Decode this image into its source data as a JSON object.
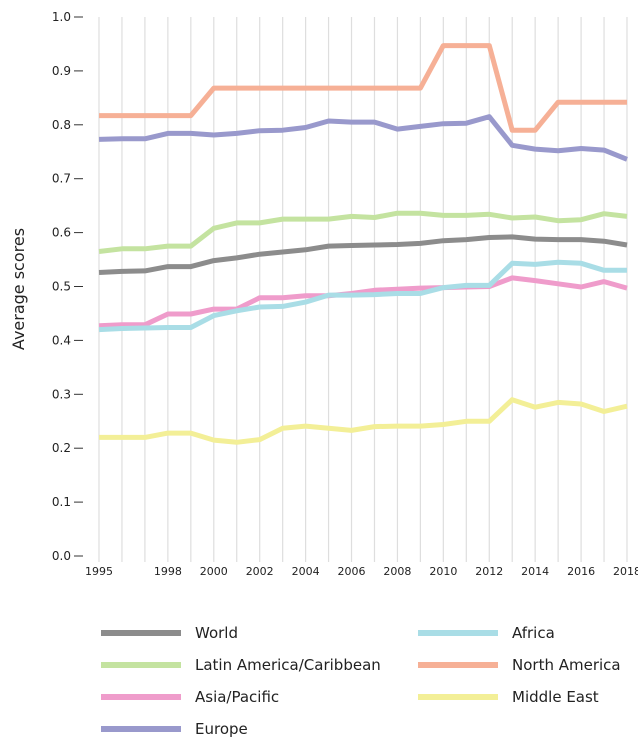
{
  "chart_data": {
    "type": "line",
    "ylabel": "Average scores",
    "xlabel": "",
    "title": "",
    "ylim": [
      0,
      1.0
    ],
    "y_ticks": [
      "0.0",
      "0.1",
      "0.2",
      "0.3",
      "0.4",
      "0.5",
      "0.6",
      "0.7",
      "0.8",
      "0.9",
      "1.0"
    ],
    "x_tick_labels": [
      "1995",
      "1998",
      "2000",
      "2002",
      "2004",
      "2006",
      "2008",
      "2010",
      "2012",
      "2014",
      "2016",
      "2018"
    ],
    "x": [
      1995,
      1996,
      1997,
      1998,
      1999,
      2000,
      2001,
      2002,
      2003,
      2004,
      2005,
      2006,
      2007,
      2008,
      2009,
      2010,
      2011,
      2012,
      2013,
      2014,
      2015,
      2016,
      2017,
      2018
    ],
    "grid": "vertical",
    "legend_position": "bottom",
    "series": [
      {
        "name": "World",
        "color": "#8c8c8c",
        "values": [
          0.526,
          0.528,
          0.529,
          0.537,
          0.537,
          0.548,
          0.553,
          0.56,
          0.564,
          0.568,
          0.575,
          0.576,
          0.577,
          0.578,
          0.58,
          0.585,
          0.587,
          0.591,
          0.592,
          0.588,
          0.587,
          0.587,
          0.584,
          0.577
        ]
      },
      {
        "name": "Latin America/Caribbean",
        "color": "#c4e3a0",
        "values": [
          0.565,
          0.57,
          0.57,
          0.575,
          0.575,
          0.608,
          0.618,
          0.618,
          0.625,
          0.625,
          0.625,
          0.63,
          0.628,
          0.636,
          0.636,
          0.632,
          0.632,
          0.634,
          0.627,
          0.629,
          0.622,
          0.624,
          0.635,
          0.63
        ]
      },
      {
        "name": "Asia/Pacific",
        "color": "#ef9ccb",
        "values": [
          0.427,
          0.429,
          0.429,
          0.449,
          0.449,
          0.458,
          0.458,
          0.479,
          0.479,
          0.483,
          0.483,
          0.487,
          0.493,
          0.495,
          0.497,
          0.498,
          0.499,
          0.5,
          0.516,
          0.511,
          0.505,
          0.499,
          0.509,
          0.497
        ]
      },
      {
        "name": "Europe",
        "color": "#9999cc",
        "values": [
          0.773,
          0.774,
          0.774,
          0.784,
          0.784,
          0.781,
          0.784,
          0.789,
          0.79,
          0.795,
          0.807,
          0.805,
          0.805,
          0.792,
          0.797,
          0.802,
          0.803,
          0.815,
          0.762,
          0.755,
          0.752,
          0.756,
          0.753,
          0.736
        ]
      },
      {
        "name": "Africa",
        "color": "#a9dde6",
        "values": [
          0.42,
          0.422,
          0.423,
          0.424,
          0.424,
          0.446,
          0.455,
          0.462,
          0.463,
          0.471,
          0.484,
          0.484,
          0.485,
          0.487,
          0.487,
          0.498,
          0.502,
          0.502,
          0.543,
          0.541,
          0.545,
          0.543,
          0.53,
          0.53
        ]
      },
      {
        "name": "North America",
        "color": "#f6b096",
        "values": [
          0.817,
          0.817,
          0.817,
          0.817,
          0.817,
          0.868,
          0.868,
          0.868,
          0.868,
          0.868,
          0.868,
          0.868,
          0.868,
          0.868,
          0.868,
          0.947,
          0.947,
          0.947,
          0.79,
          0.79,
          0.842,
          0.842,
          0.842,
          0.842
        ]
      },
      {
        "name": "Middle East",
        "color": "#f3ef97",
        "values": [
          0.22,
          0.22,
          0.22,
          0.228,
          0.228,
          0.215,
          0.211,
          0.216,
          0.237,
          0.241,
          0.237,
          0.233,
          0.24,
          0.241,
          0.241,
          0.244,
          0.25,
          0.25,
          0.29,
          0.276,
          0.285,
          0.282,
          0.268,
          0.278
        ]
      }
    ],
    "legend_order": [
      "World",
      "Africa",
      "Latin America/Caribbean",
      "North America",
      "Asia/Pacific",
      "Middle East",
      "Europe"
    ]
  }
}
